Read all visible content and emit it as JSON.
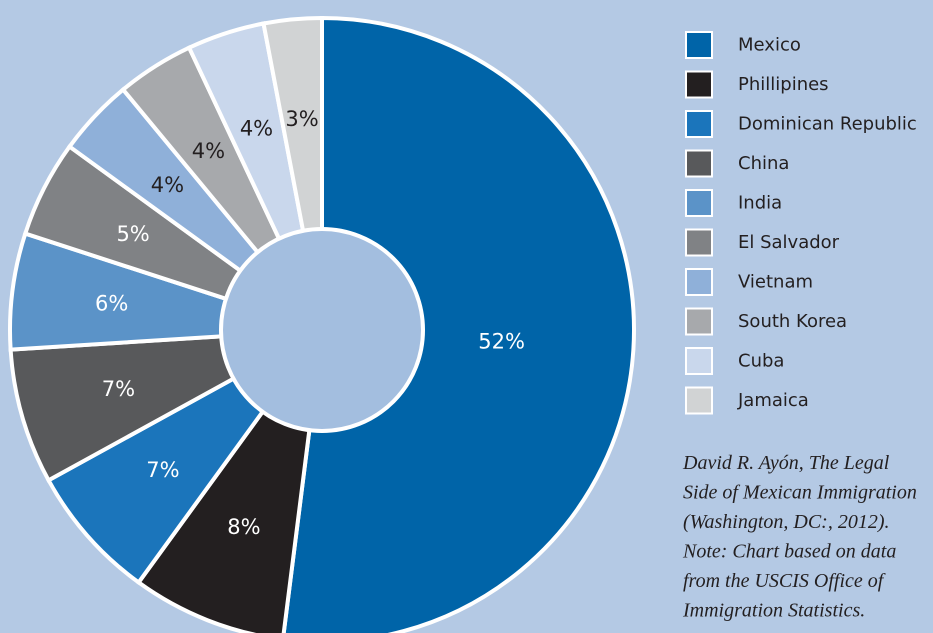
{
  "chart_data": {
    "type": "pie",
    "categories": [
      "Mexico",
      "Phillipines",
      "Dominican Republic",
      "China",
      "India",
      "El Salvador",
      "Vietnam",
      "South Korea",
      "Cuba",
      "Jamaica"
    ],
    "values": [
      52,
      8,
      7,
      7,
      6,
      5,
      4,
      4,
      4,
      3
    ],
    "value_labels": [
      "52%",
      "8%",
      "7%",
      "7%",
      "6%",
      "5%",
      "4%",
      "4%",
      "4%",
      "3%"
    ],
    "colors": [
      "#0064a8",
      "#231f20",
      "#1b75bb",
      "#58595b",
      "#5b93c8",
      "#808285",
      "#8fb0d9",
      "#a7a9ac",
      "#c9d7ec",
      "#d1d3d4"
    ],
    "label_colors": [
      "#ffffff",
      "#ffffff",
      "#ffffff",
      "#ffffff",
      "#ffffff",
      "#ffffff",
      "#231f20",
      "#231f20",
      "#231f20",
      "#231f20"
    ],
    "legend": "right",
    "source_lines": [
      "David R. Ayón, The Legal",
      "Side of Mexican Immigration",
      "(Washington, DC:, 2012).",
      "Note: Chart based on data",
      "from the USCIS Office of",
      "Immigration Statistics."
    ]
  }
}
